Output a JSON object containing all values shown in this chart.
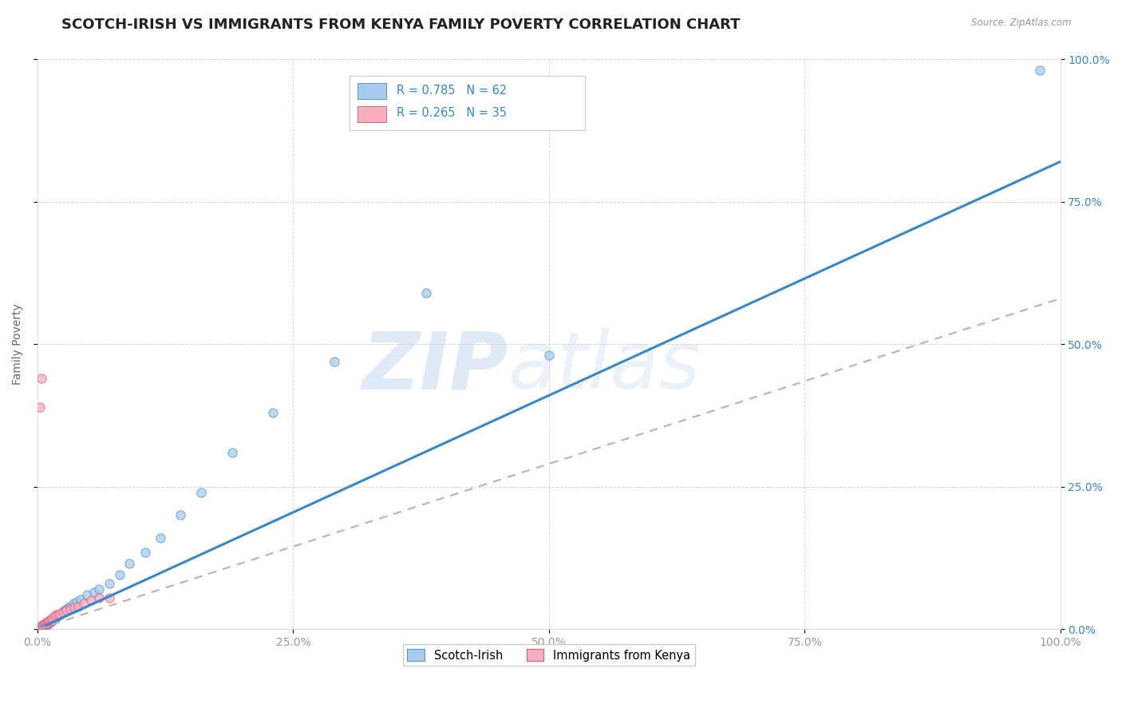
{
  "title": "SCOTCH-IRISH VS IMMIGRANTS FROM KENYA FAMILY POVERTY CORRELATION CHART",
  "source": "Source: ZipAtlas.com",
  "ylabel": "Family Poverty",
  "xticklabels": [
    "0.0%",
    "25.0%",
    "50.0%",
    "75.0%",
    "100.0%"
  ],
  "yticklabels": [
    "0.0%",
    "25.0%",
    "50.0%",
    "75.0%",
    "100.0%"
  ],
  "xlim": [
    0,
    1
  ],
  "ylim": [
    0,
    1
  ],
  "blue_R": 0.785,
  "blue_N": 62,
  "pink_R": 0.265,
  "pink_N": 35,
  "blue_scatter_color": "#a8ccee",
  "blue_edge_color": "#5599cc",
  "pink_scatter_color": "#f8b0c0",
  "pink_edge_color": "#e06080",
  "blue_line_color": "#3388cc",
  "pink_line_color": "#ee6688",
  "gray_dash_color": "#ccaaaa",
  "blue_scatter_x": [
    0.002,
    0.003,
    0.004,
    0.004,
    0.005,
    0.005,
    0.005,
    0.006,
    0.006,
    0.007,
    0.007,
    0.008,
    0.008,
    0.008,
    0.009,
    0.009,
    0.01,
    0.01,
    0.01,
    0.01,
    0.011,
    0.011,
    0.012,
    0.012,
    0.013,
    0.013,
    0.014,
    0.015,
    0.015,
    0.016,
    0.017,
    0.018,
    0.019,
    0.02,
    0.021,
    0.022,
    0.023,
    0.024,
    0.025,
    0.026,
    0.028,
    0.03,
    0.032,
    0.035,
    0.038,
    0.042,
    0.048,
    0.055,
    0.06,
    0.07,
    0.08,
    0.09,
    0.105,
    0.12,
    0.14,
    0.16,
    0.19,
    0.23,
    0.29,
    0.38,
    0.5,
    0.98
  ],
  "blue_scatter_y": [
    0.002,
    0.003,
    0.003,
    0.005,
    0.004,
    0.006,
    0.007,
    0.005,
    0.007,
    0.006,
    0.008,
    0.007,
    0.009,
    0.01,
    0.008,
    0.01,
    0.008,
    0.009,
    0.011,
    0.013,
    0.01,
    0.012,
    0.012,
    0.015,
    0.013,
    0.016,
    0.015,
    0.016,
    0.018,
    0.018,
    0.02,
    0.02,
    0.022,
    0.024,
    0.025,
    0.026,
    0.028,
    0.03,
    0.03,
    0.032,
    0.035,
    0.038,
    0.04,
    0.045,
    0.048,
    0.052,
    0.06,
    0.065,
    0.07,
    0.08,
    0.095,
    0.115,
    0.135,
    0.16,
    0.2,
    0.24,
    0.31,
    0.38,
    0.47,
    0.59,
    0.48,
    0.98
  ],
  "pink_scatter_x": [
    0.002,
    0.003,
    0.003,
    0.004,
    0.005,
    0.005,
    0.006,
    0.006,
    0.007,
    0.007,
    0.008,
    0.008,
    0.009,
    0.01,
    0.01,
    0.011,
    0.012,
    0.013,
    0.014,
    0.015,
    0.016,
    0.018,
    0.02,
    0.022,
    0.025,
    0.028,
    0.032,
    0.036,
    0.04,
    0.045,
    0.052,
    0.06,
    0.07,
    0.002,
    0.004
  ],
  "pink_scatter_y": [
    0.002,
    0.004,
    0.005,
    0.004,
    0.005,
    0.007,
    0.006,
    0.008,
    0.007,
    0.009,
    0.01,
    0.012,
    0.012,
    0.01,
    0.013,
    0.014,
    0.015,
    0.016,
    0.018,
    0.02,
    0.022,
    0.025,
    0.025,
    0.027,
    0.03,
    0.032,
    0.035,
    0.038,
    0.04,
    0.045,
    0.05,
    0.055,
    0.055,
    0.39,
    0.44
  ],
  "blue_line_x0": 0.0,
  "blue_line_y0": 0.0,
  "blue_line_x1": 1.0,
  "blue_line_y1": 0.82,
  "pink_line_x0": 0.0,
  "pink_line_y0": 0.0,
  "pink_line_x1": 1.0,
  "pink_line_y1": 0.58,
  "legend1_label": "Scotch-Irish",
  "legend2_label": "Immigrants from Kenya",
  "title_fontsize": 13,
  "axis_label_fontsize": 10,
  "tick_fontsize": 10,
  "watermark_color": "#c8d8ef",
  "background_color": "#ffffff",
  "grid_color": "#cccccc"
}
